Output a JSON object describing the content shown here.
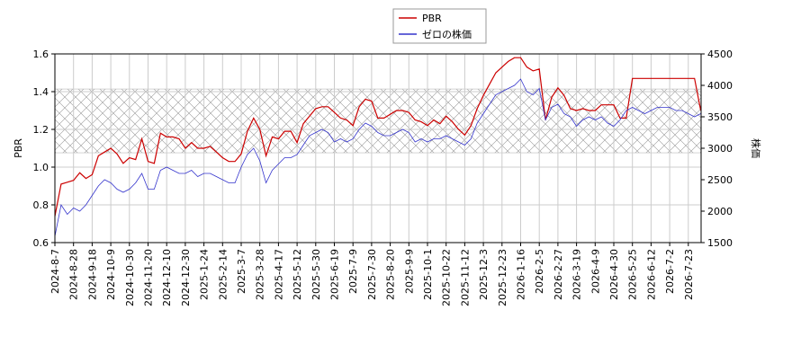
{
  "chart_data": {
    "type": "line",
    "categories": [
      "2024-8-7",
      null,
      null,
      "2024-8-28",
      null,
      null,
      "2024-9-18",
      null,
      null,
      "2024-10-9",
      null,
      null,
      "2024-10-30",
      null,
      null,
      "2024-11-20",
      null,
      null,
      "2024-12-10",
      null,
      null,
      "2024-12-30",
      null,
      null,
      "2025-1-24",
      null,
      null,
      "2025-2-14",
      null,
      null,
      "2025-3-7",
      null,
      null,
      "2025-3-28",
      null,
      null,
      "2025-4-17",
      null,
      null,
      "2025-5-12",
      null,
      null,
      "2025-5-30",
      null,
      null,
      "2025-6-19",
      null,
      null,
      "2025-7-9",
      null,
      null,
      "2025-7-30",
      null,
      null,
      "2025-8-20",
      null,
      null,
      "2025-9-9",
      null,
      null,
      "2025-10-1",
      null,
      null,
      "2025-10-22",
      null,
      null,
      "2025-11-12",
      null,
      null,
      "2025-12-3",
      null,
      null,
      "2025-12-23",
      null,
      null,
      "2026-1-16",
      null,
      null,
      "2026-2-5",
      null,
      null,
      "2026-2-27",
      null,
      null,
      "2026-3-19",
      null,
      null,
      "2026-4-9",
      null,
      null,
      "2026-4-30",
      null,
      null,
      "2026-5-25",
      null,
      null,
      "2026-6-12",
      null,
      null,
      "2026-7-2",
      null,
      null,
      "2026-7-23",
      null,
      null
    ],
    "series": [
      {
        "name": "PBR",
        "color": "#cc0000",
        "axis": "y",
        "values": [
          0.74,
          0.91,
          0.92,
          0.93,
          0.97,
          0.94,
          0.96,
          1.06,
          1.08,
          1.1,
          1.07,
          1.02,
          1.05,
          1.04,
          1.15,
          1.03,
          1.02,
          1.18,
          1.16,
          1.16,
          1.15,
          1.1,
          1.13,
          1.1,
          1.1,
          1.11,
          1.08,
          1.05,
          1.03,
          1.03,
          1.07,
          1.19,
          1.26,
          1.2,
          1.06,
          1.16,
          1.15,
          1.19,
          1.19,
          1.13,
          1.23,
          1.27,
          1.31,
          1.32,
          1.32,
          1.29,
          1.26,
          1.25,
          1.22,
          1.32,
          1.36,
          1.35,
          1.26,
          1.26,
          1.28,
          1.3,
          1.3,
          1.29,
          1.25,
          1.24,
          1.22,
          1.25,
          1.23,
          1.27,
          1.24,
          1.2,
          1.17,
          1.22,
          1.31,
          1.38,
          1.44,
          1.5,
          1.53,
          1.56,
          1.58,
          1.58,
          1.53,
          1.51,
          1.52,
          1.25,
          1.37,
          1.42,
          1.38,
          1.31,
          1.3,
          1.31,
          1.3,
          1.3,
          1.33,
          1.33,
          1.33,
          1.26,
          1.26,
          1.47,
          1.47,
          1.47,
          1.47,
          1.47,
          1.47,
          1.47,
          1.47,
          1.47,
          1.47,
          1.47,
          1.3
        ]
      },
      {
        "name": "ゼロの株価",
        "color": "#3333cc",
        "axis": "y2",
        "values": [
          1600,
          2100,
          1950,
          2050,
          2000,
          2100,
          2250,
          2400,
          2500,
          2450,
          2350,
          2300,
          2350,
          2450,
          2600,
          2350,
          2350,
          2650,
          2700,
          2650,
          2600,
          2600,
          2650,
          2550,
          2600,
          2600,
          2550,
          2500,
          2450,
          2450,
          2700,
          2900,
          3000,
          2800,
          2450,
          2650,
          2750,
          2850,
          2850,
          2900,
          3050,
          3200,
          3250,
          3300,
          3250,
          3100,
          3150,
          3100,
          3150,
          3300,
          3400,
          3350,
          3250,
          3200,
          3200,
          3250,
          3300,
          3250,
          3100,
          3150,
          3100,
          3150,
          3150,
          3200,
          3150,
          3100,
          3050,
          3150,
          3400,
          3550,
          3700,
          3850,
          3900,
          3950,
          4000,
          4100,
          3900,
          3850,
          3950,
          3450,
          3650,
          3700,
          3550,
          3500,
          3350,
          3450,
          3500,
          3450,
          3500,
          3400,
          3350,
          3450,
          3600,
          3650,
          3600,
          3550,
          3600,
          3650,
          3650,
          3650,
          3600,
          3600,
          3550,
          3500,
          3550
        ]
      }
    ],
    "ylabel": "PBR",
    "y2label": "株価",
    "ylim": [
      0.6,
      1.6
    ],
    "yticks": [
      0.6,
      0.8,
      {
        "value": 1,
        "label": "1.0"
      },
      1.2,
      1.4,
      1.6
    ],
    "y2lim": [
      1500,
      4500
    ],
    "y2ticks": [
      1500,
      2000,
      2500,
      3000,
      3500,
      4000,
      4500
    ],
    "band": [
      1.076,
      1.414
    ],
    "grid": true,
    "legend": "top"
  }
}
